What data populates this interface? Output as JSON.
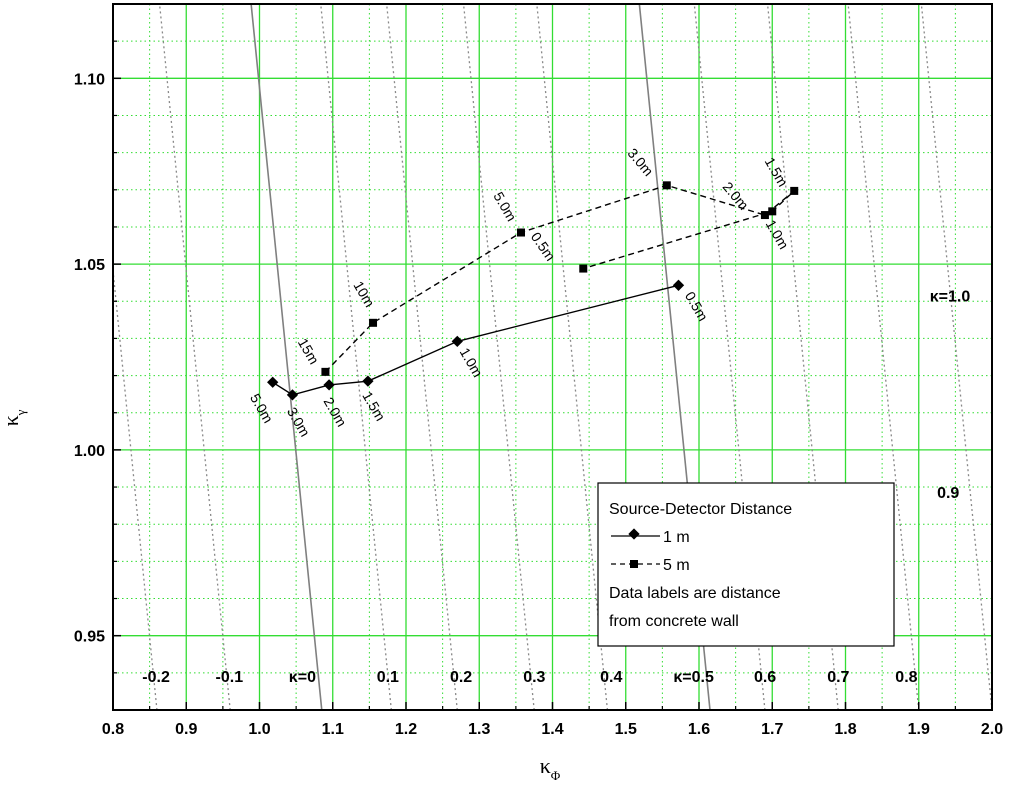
{
  "chart_data": {
    "type": "line",
    "xlabel": "κ",
    "xlabel_sub": "Φ",
    "ylabel": "κ",
    "ylabel_sub": "γ",
    "xlim": [
      0.8,
      2.0
    ],
    "ylim": [
      0.93,
      1.12
    ],
    "x_ticks": [
      "0.8",
      "0.9",
      "1.0",
      "1.1",
      "1.2",
      "1.3",
      "1.4",
      "1.5",
      "1.6",
      "1.7",
      "1.8",
      "1.9",
      "2.0"
    ],
    "y_ticks": [
      "0.95",
      "1.00",
      "1.05",
      "1.10"
    ],
    "grid": "major green solid, minor green dotted",
    "iso_kappa_lines": [
      {
        "label": "-0.2",
        "style": "dotted",
        "bottom_x": 0.86,
        "label_x": 0.84
      },
      {
        "label": "-0.1",
        "style": "dotted",
        "bottom_x": 0.96,
        "label_x": 0.94
      },
      {
        "label": "κ=0",
        "style": "solid",
        "bottom_x": 1.085,
        "label_x": 1.04
      },
      {
        "label": "0.1",
        "style": "dotted",
        "bottom_x": 1.18,
        "label_x": 1.16
      },
      {
        "label": "0.2",
        "style": "dotted",
        "bottom_x": 1.27,
        "label_x": 1.26
      },
      {
        "label": "0.3",
        "style": "dotted",
        "bottom_x": 1.375,
        "label_x": 1.36
      },
      {
        "label": "0.4",
        "style": "dotted",
        "bottom_x": 1.475,
        "label_x": 1.465
      },
      {
        "label": "κ=0.5",
        "style": "solid",
        "bottom_x": 1.615,
        "label_x": 1.565
      },
      {
        "label": "0.6",
        "style": "dotted",
        "bottom_x": 1.69,
        "label_x": 1.675
      },
      {
        "label": "0.7",
        "style": "dotted",
        "bottom_x": 1.79,
        "label_x": 1.775
      },
      {
        "label": "0.8",
        "style": "dotted",
        "bottom_x": 1.9,
        "label_x": 1.868
      },
      {
        "label": "0.9",
        "style": "dotted",
        "bottom_x": 2.0,
        "label_x": 1.925,
        "label_y": 0.9887
      },
      {
        "label": "κ=1.0",
        "style": "solid",
        "bottom_x": 2.15,
        "label_x": 1.915,
        "label_y": 1.0415
      }
    ],
    "series": [
      {
        "name": "1 m",
        "style": "solid",
        "marker": "diamond",
        "points": [
          {
            "x": 1.018,
            "y": 1.0182,
            "label": "5.0m"
          },
          {
            "x": 1.045,
            "y": 1.0148,
            "label": "3.0m"
          },
          {
            "x": 1.095,
            "y": 1.0175,
            "label": "2.0m"
          },
          {
            "x": 1.148,
            "y": 1.0185,
            "label": "1.5m"
          },
          {
            "x": 1.27,
            "y": 1.0292,
            "label": "1.0m"
          },
          {
            "x": 1.572,
            "y": 1.0443,
            "label": "0.5m"
          }
        ]
      },
      {
        "name": "5 m",
        "style": "dashed",
        "marker": "square",
        "points": [
          {
            "x": 1.09,
            "y": 1.021,
            "label": "15m"
          },
          {
            "x": 1.155,
            "y": 1.0342,
            "label": "10m"
          },
          {
            "x": 1.357,
            "y": 1.0585,
            "label": "5.0m"
          },
          {
            "x": 1.556,
            "y": 1.0712,
            "label": "3.0m"
          },
          {
            "x": 1.69,
            "y": 1.0632,
            "label": "2.0m"
          },
          {
            "x": 1.73,
            "y": 1.0697,
            "label": "1.5m"
          },
          {
            "x": 1.7,
            "y": 1.0642,
            "label": "1.0m"
          },
          {
            "x": 1.442,
            "y": 1.0488,
            "label": "0.5m"
          }
        ]
      }
    ],
    "legend": {
      "position": "bottom-right",
      "title": "Source-Detector Distance",
      "entries": [
        "1 m",
        "5 m"
      ],
      "note_line1": "Data labels are distance",
      "note_line2": "from concrete wall"
    }
  }
}
